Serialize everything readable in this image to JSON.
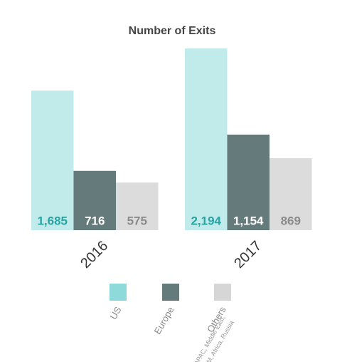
{
  "chart_data": {
    "type": "bar",
    "title": "Number of Exits",
    "categories": [
      "2016",
      "2017"
    ],
    "series": [
      {
        "name": "US",
        "color": "#c1eaea",
        "swatch_color": "#8edada",
        "label_color": "#2aa3a3",
        "values": [
          1685,
          2194
        ],
        "value_labels": [
          "1,685",
          "2,194"
        ]
      },
      {
        "name": "Europe",
        "color": "#657b7b",
        "swatch_color": "#657b7b",
        "label_color": "#ffffff",
        "values": [
          716,
          1154
        ],
        "value_labels": [
          "716",
          "1,154"
        ]
      },
      {
        "name": "Others",
        "color": "#dcdcdc",
        "swatch_color": "#d6d6d6",
        "label_color": "#8a8a8a",
        "values": [
          575,
          869
        ],
        "value_labels": [
          "575",
          "869"
        ]
      }
    ],
    "legend_note": [
      "APAC, Middle East,",
      "LATAM, Africa, Russia"
    ],
    "grid": false
  }
}
